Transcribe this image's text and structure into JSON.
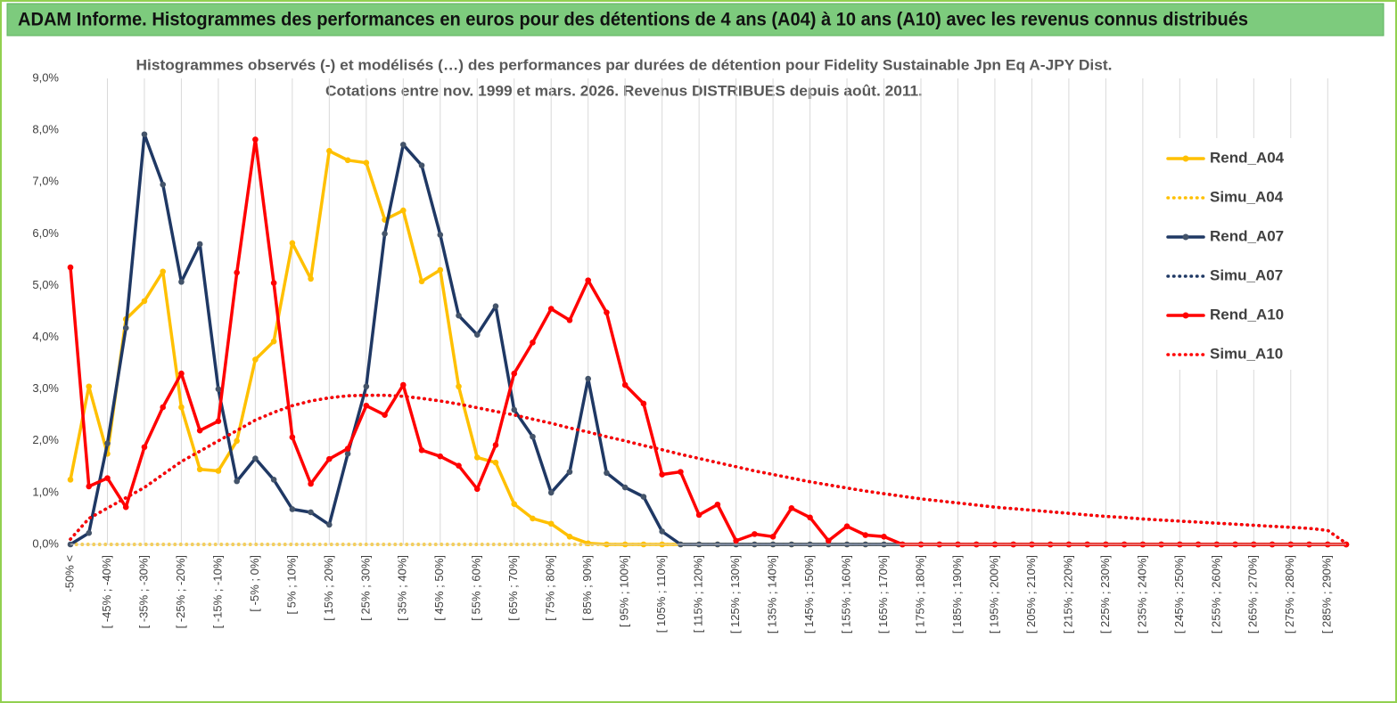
{
  "chart_data": {
    "type": "line",
    "title": "ADAM Informe. Histogrammes des performances en euros pour des détentions de 4 ans (A04) à 10 ans (A10) avec les revenus connus distribués",
    "subtitle": [
      "Histogrammes observés (-) et modélisés (…) des performances par durées de détention pour Fidelity Sustainable Jpn Eq A-JPY Dist.",
      "Cotations entre nov. 1999 et mars. 2026. Revenus DISTRIBUES depuis août. 2011."
    ],
    "categories": [
      "-50% <",
      null,
      "[ -45% ; -40%]",
      null,
      "[ -35% ; -30%]",
      null,
      "[ -25% ; -20%]",
      null,
      "[ -15% ; -10%]",
      null,
      "[ -5% ; 0%]",
      null,
      "[ 5% ; 10%]",
      null,
      "[ 15% ; 20%]",
      null,
      "[ 25% ; 30%]",
      null,
      "[ 35% ; 40%]",
      null,
      "[ 45% ; 50%]",
      null,
      "[ 55% ; 60%]",
      null,
      "[ 65% ; 70%]",
      null,
      "[ 75% ; 80%]",
      null,
      "[ 85% ; 90%]",
      null,
      "[ 95% ; 100%]",
      null,
      "[ 105% ; 110%]",
      null,
      "[ 115% ; 120%]",
      null,
      "[ 125% ; 130%]",
      null,
      "[ 135% ; 140%]",
      null,
      "[ 145% ; 150%]",
      null,
      "[ 155% ; 160%]",
      null,
      "[ 165% ; 170%]",
      null,
      "[ 175% ; 180%]",
      null,
      "[ 185% ; 190%]",
      null,
      "[ 195% ; 200%]",
      null,
      "[ 205% ; 210%]",
      null,
      "[ 215% ; 220%]",
      null,
      "[ 225% ; 230%]",
      null,
      "[ 235% ; 240%]",
      null,
      "[ 245% ; 250%]",
      null,
      "[ 255% ; 260%]",
      null,
      "[ 265% ; 270%]",
      null,
      "[ 275% ; 280%]",
      null,
      "[ 285% ; 290%]",
      null
    ],
    "ylim": [
      0,
      9
    ],
    "yticks": [
      {
        "value": 0,
        "label": "0,0%"
      },
      {
        "value": 1,
        "label": "1,0%"
      },
      {
        "value": 2,
        "label": "2,0%"
      },
      {
        "value": 3,
        "label": "3,0%"
      },
      {
        "value": 4,
        "label": "4,0%"
      },
      {
        "value": 5,
        "label": "5,0%"
      },
      {
        "value": 6,
        "label": "6,0%"
      },
      {
        "value": 7,
        "label": "7,0%"
      },
      {
        "value": 8,
        "label": "8,0%"
      },
      {
        "value": 9,
        "label": "9,0%"
      }
    ],
    "grid": "x",
    "legend": "right",
    "series": [
      {
        "name": "Rend_A04",
        "color": "#ffc000",
        "style": "solid",
        "values": [
          1.25,
          3.05,
          1.75,
          4.35,
          4.7,
          5.27,
          2.65,
          1.45,
          1.42,
          2.0,
          3.57,
          3.92,
          5.82,
          5.13,
          7.6,
          7.42,
          7.37,
          6.27,
          6.45,
          5.08,
          5.3,
          3.05,
          1.68,
          1.58,
          0.78,
          0.5,
          0.4,
          0.15,
          0.02,
          0,
          0,
          0,
          0,
          0,
          0,
          0,
          0,
          0,
          0,
          0,
          0,
          0,
          0,
          0,
          0,
          0,
          0,
          0,
          0,
          0,
          0,
          0,
          0,
          0,
          0,
          0,
          0,
          0,
          0,
          0,
          0,
          0,
          0,
          0,
          0,
          0,
          0,
          0,
          0,
          0
        ]
      },
      {
        "name": "Simu_A04",
        "color": "#ffc000",
        "style": "dotted",
        "values": [
          0,
          0,
          0,
          0,
          0,
          0,
          0,
          0,
          0,
          0,
          0,
          0,
          0,
          0,
          0,
          0,
          0,
          0,
          0,
          0,
          0,
          0,
          0,
          0,
          0,
          0,
          0,
          0,
          0,
          0,
          0,
          0,
          0,
          0,
          0,
          0,
          0,
          0,
          0,
          0,
          0,
          0,
          0,
          0,
          0,
          0,
          0,
          0,
          0,
          0,
          0,
          0,
          0,
          0,
          0,
          0,
          0,
          0,
          0,
          0,
          0,
          0,
          0,
          0,
          0,
          0,
          0,
          0,
          0,
          0
        ]
      },
      {
        "name": "Rend_A07",
        "color": "#1f3864",
        "style": "solid",
        "values": [
          0,
          0.22,
          1.95,
          4.18,
          7.92,
          6.95,
          5.07,
          5.8,
          3.0,
          1.22,
          1.66,
          1.25,
          0.68,
          0.62,
          0.38,
          1.75,
          3.05,
          6.0,
          7.72,
          7.32,
          5.98,
          4.42,
          4.05,
          4.6,
          2.6,
          2.08,
          1.0,
          1.4,
          3.2,
          1.38,
          1.1,
          0.92,
          0.25,
          0,
          0,
          0,
          0,
          0,
          0,
          0,
          0,
          0,
          0,
          0,
          0,
          0,
          0,
          0,
          0,
          0,
          0,
          0,
          0,
          0,
          0,
          0,
          0,
          0,
          0,
          0,
          0,
          0,
          0,
          0,
          0,
          0,
          0,
          0,
          0,
          0
        ]
      },
      {
        "name": "Simu_A07",
        "color": "#1f3864",
        "style": "dotted",
        "values": [
          0.1,
          0.5,
          0.7,
          0.9,
          1.1,
          1.35,
          1.6,
          1.8,
          2.0,
          2.2,
          2.4,
          2.55,
          2.68,
          2.77,
          2.83,
          2.87,
          2.88,
          2.88,
          2.86,
          2.82,
          2.77,
          2.71,
          2.64,
          2.57,
          2.5,
          2.42,
          2.34,
          2.25,
          2.17,
          2.08,
          2.0,
          1.91,
          1.83,
          1.74,
          1.66,
          1.58,
          1.5,
          1.42,
          1.35,
          1.28,
          1.21,
          1.15,
          1.09,
          1.03,
          0.98,
          0.93,
          0.88,
          0.84,
          0.8,
          0.76,
          0.72,
          0.69,
          0.66,
          0.63,
          0.6,
          0.57,
          0.54,
          0.52,
          0.49,
          0.47,
          0.45,
          0.43,
          0.41,
          0.39,
          0.37,
          0.35,
          0.33,
          0.31,
          0.27,
          0.02
        ]
      },
      {
        "name": "Rend_A10",
        "color": "#ff0000",
        "style": "solid",
        "values": [
          5.35,
          1.12,
          1.28,
          0.72,
          1.88,
          2.65,
          3.3,
          2.2,
          2.38,
          5.25,
          7.82,
          5.05,
          2.07,
          1.17,
          1.65,
          1.85,
          2.68,
          2.5,
          3.08,
          1.82,
          1.7,
          1.52,
          1.07,
          1.92,
          3.3,
          3.9,
          4.55,
          4.33,
          5.1,
          4.48,
          3.08,
          2.72,
          1.35,
          1.4,
          0.57,
          0.77,
          0.07,
          0.2,
          0.15,
          0.7,
          0.52,
          0.07,
          0.35,
          0.18,
          0.15,
          0,
          0,
          0,
          0,
          0,
          0,
          0,
          0,
          0,
          0,
          0,
          0,
          0,
          0,
          0,
          0,
          0,
          0,
          0,
          0,
          0,
          0,
          0,
          0,
          0
        ]
      },
      {
        "name": "Simu_A10",
        "color": "#ff0000",
        "style": "dotted",
        "values": [
          0.1,
          0.5,
          0.7,
          0.9,
          1.1,
          1.35,
          1.6,
          1.8,
          2.0,
          2.2,
          2.4,
          2.55,
          2.68,
          2.77,
          2.83,
          2.87,
          2.88,
          2.88,
          2.86,
          2.82,
          2.77,
          2.71,
          2.64,
          2.57,
          2.5,
          2.42,
          2.34,
          2.25,
          2.17,
          2.08,
          2.0,
          1.91,
          1.83,
          1.74,
          1.66,
          1.58,
          1.5,
          1.42,
          1.35,
          1.28,
          1.21,
          1.15,
          1.09,
          1.03,
          0.98,
          0.93,
          0.88,
          0.84,
          0.8,
          0.76,
          0.72,
          0.69,
          0.66,
          0.63,
          0.6,
          0.57,
          0.54,
          0.52,
          0.49,
          0.47,
          0.45,
          0.43,
          0.41,
          0.39,
          0.37,
          0.35,
          0.33,
          0.31,
          0.27,
          0.02
        ]
      }
    ]
  }
}
